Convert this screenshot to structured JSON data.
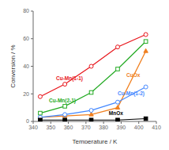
{
  "chart_data": {
    "type": "line",
    "xlabel": "Temperature / K",
    "ylabel": "Conversion / %",
    "xlim": [
      340,
      410
    ],
    "ylim": [
      0,
      80
    ],
    "xticks": [
      340,
      350,
      360,
      370,
      380,
      390,
      400,
      410
    ],
    "yticks": [
      0,
      20,
      40,
      60,
      80
    ],
    "series": [
      {
        "color": "#e8141a",
        "marker": "circle_open",
        "x": [
          344,
          358,
          373,
          388,
          404
        ],
        "values": [
          18,
          27,
          40,
          54,
          63
        ]
      },
      {
        "color": "#22aa22",
        "marker": "square_open",
        "x": [
          344,
          358,
          373,
          388,
          404
        ],
        "values": [
          6,
          11,
          21,
          38,
          58
        ]
      },
      {
        "color": "#f08020",
        "marker": "triangle",
        "x": [
          344,
          358,
          373,
          388,
          404
        ],
        "values": [
          3,
          4,
          5,
          10,
          51
        ]
      },
      {
        "color": "#4488ff",
        "marker": "circle_open",
        "x": [
          344,
          358,
          373,
          388,
          404
        ],
        "values": [
          3,
          5,
          8,
          14,
          25
        ]
      },
      {
        "color": "#000000",
        "marker": "square",
        "x": [
          344,
          358,
          373,
          388,
          404
        ],
        "values": [
          1,
          1,
          1,
          1,
          2
        ]
      }
    ],
    "annotations": [
      {
        "text": "Cu-Mn(1-1)",
        "x": 353,
        "y": 30,
        "color": "#e8141a"
      },
      {
        "text": "Cu-Mn(2-1)",
        "x": 349,
        "y": 14,
        "color": "#22aa22"
      },
      {
        "text": "CuOx",
        "x": 393,
        "y": 32,
        "color": "#f08020"
      },
      {
        "text": "Cu-Mn(1-2)",
        "x": 388,
        "y": 19,
        "color": "#4488ff"
      },
      {
        "text": "MnOx",
        "x": 383,
        "y": 4.5,
        "color": "#000000"
      }
    ]
  }
}
